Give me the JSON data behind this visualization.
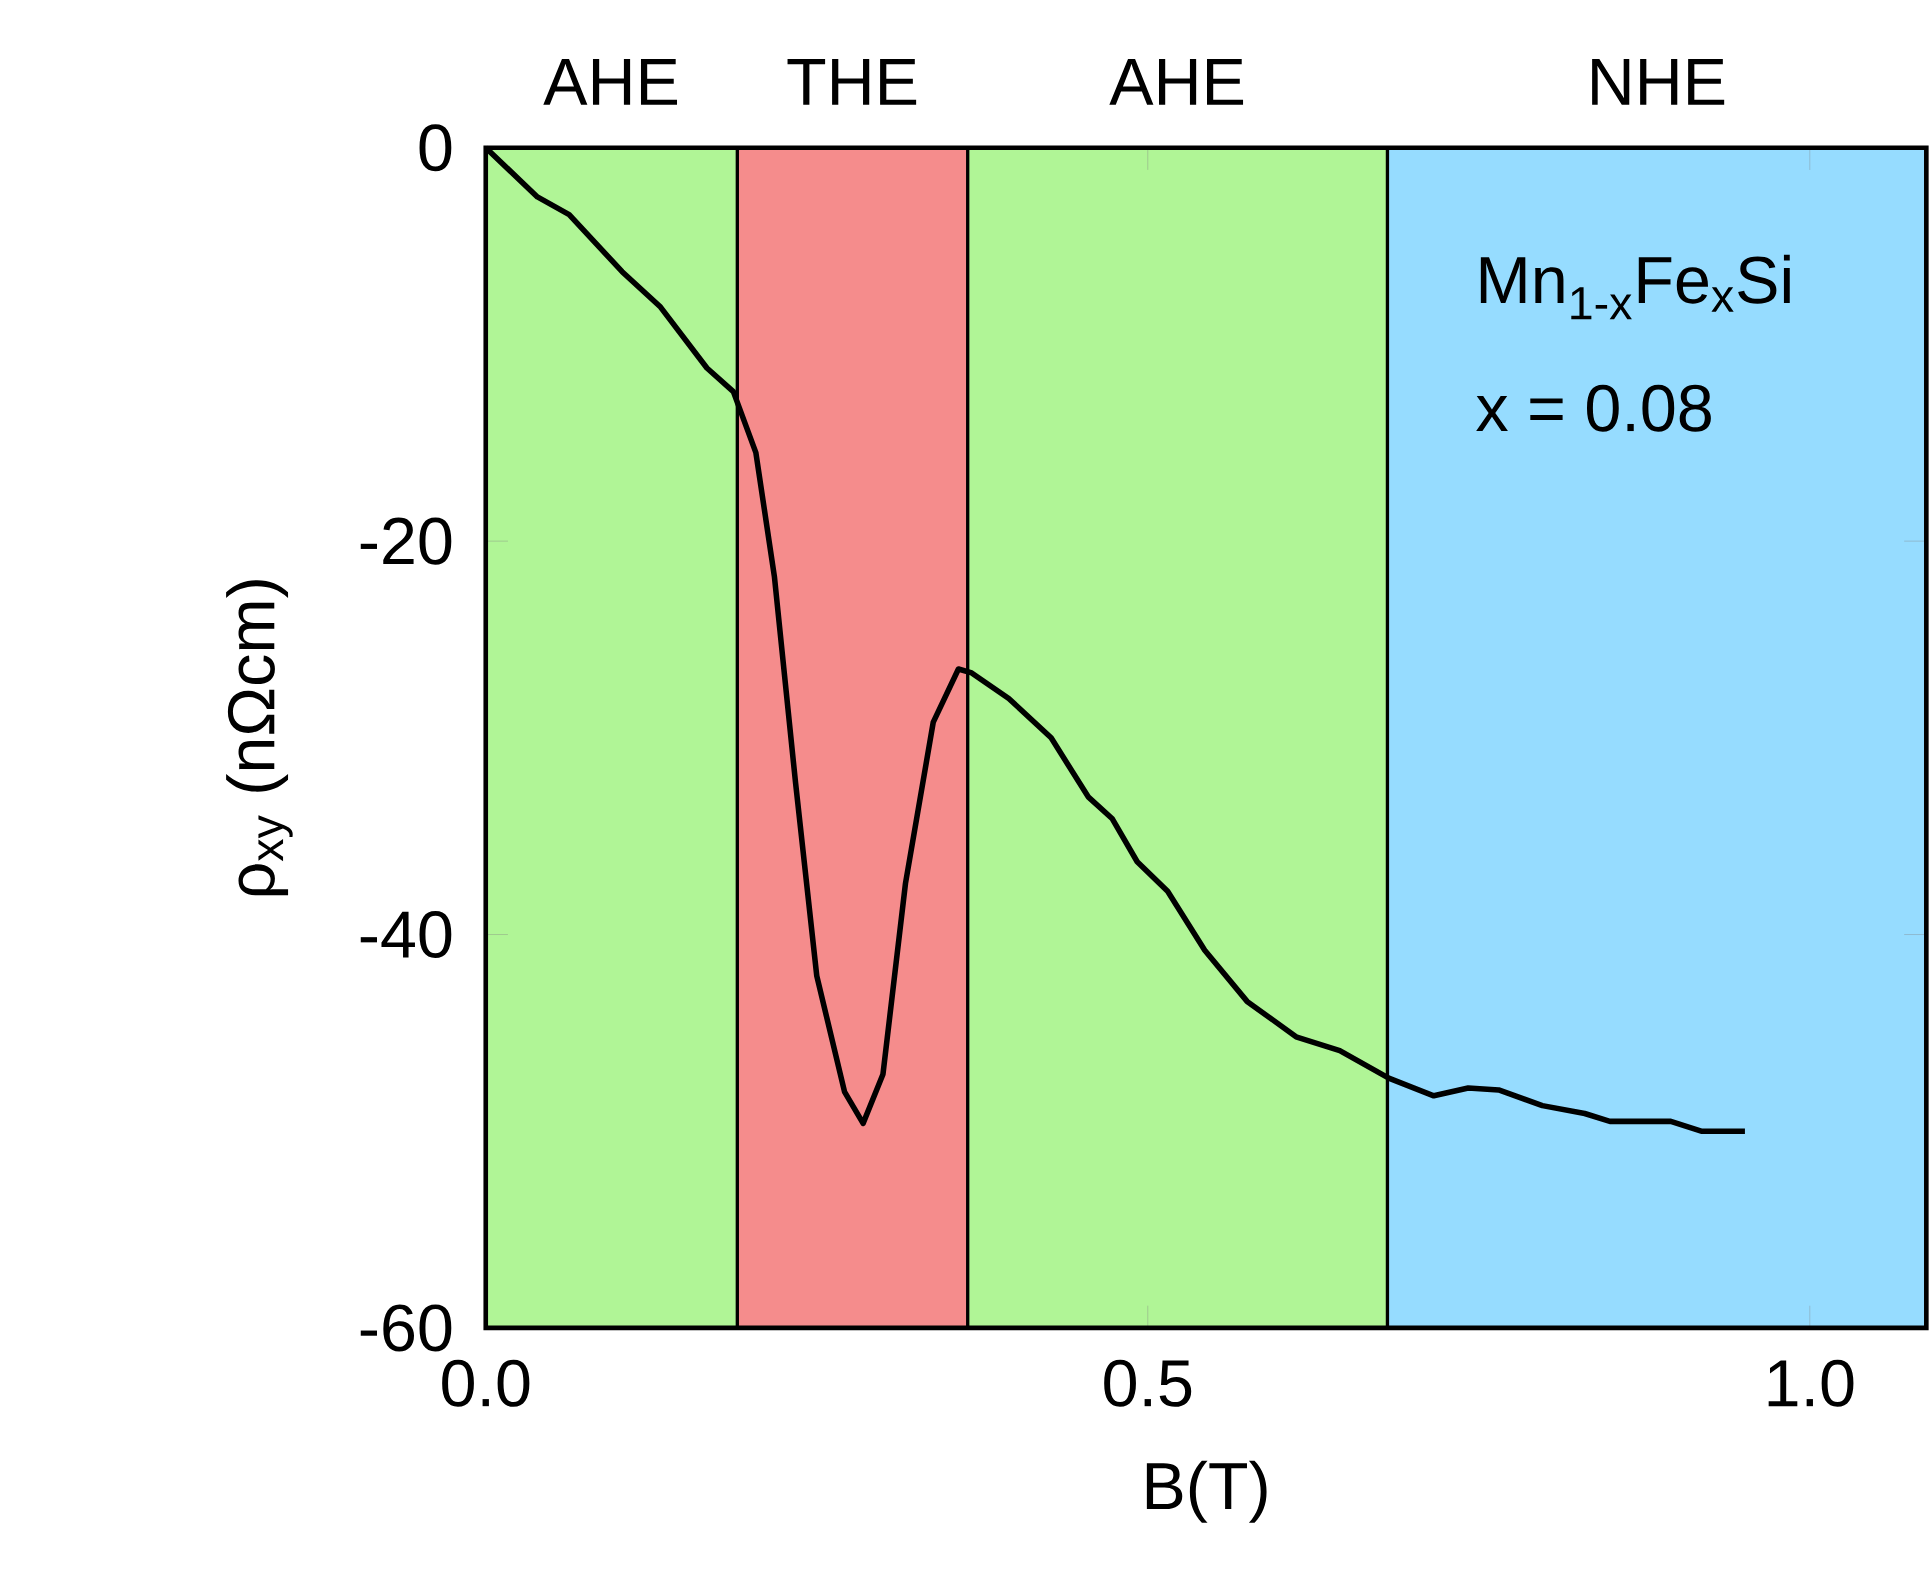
{
  "chart_data": {
    "type": "line",
    "xlabel": "B(T)",
    "ylabel": "ρ$_{xy}$ (nΩcm)",
    "annotations": [
      "Mn$_{1-x}$Fe$_{x}$Si",
      "x = 0.08"
    ],
    "xlim": [
      0,
      1.088
    ],
    "ylim": [
      -60,
      0
    ],
    "xticks": [
      {
        "value": 0,
        "label": "0.0"
      },
      {
        "value": 0.5,
        "label": "0.5"
      },
      {
        "value": 1.0,
        "label": "1.0"
      }
    ],
    "yticks": [
      0,
      -20,
      -40,
      -60
    ],
    "bands": [
      {
        "axis": "x",
        "from": 0,
        "to": 0.19,
        "label": "AHE",
        "color": "#b0f596"
      },
      {
        "axis": "x",
        "from": 0.19,
        "to": 0.364,
        "label": "THE",
        "color": "#f58c8c"
      },
      {
        "axis": "x",
        "from": 0.364,
        "to": 0.681,
        "label": "AHE",
        "color": "#b0f596"
      },
      {
        "axis": "x",
        "from": 0.681,
        "to": 1.088,
        "label": "NHE",
        "color": "#96dcff"
      }
    ],
    "ref_lines": [
      {
        "axis": "x",
        "value": 0.19,
        "color": "#000000"
      },
      {
        "axis": "x",
        "value": 0.364,
        "color": "#000000"
      },
      {
        "axis": "x",
        "value": 0.681,
        "color": "#000000"
      }
    ],
    "series": [
      {
        "color": "#000000",
        "x": [
          0,
          0.039,
          0.063,
          0.103,
          0.132,
          0.167,
          0.187,
          0.204,
          0.218,
          0.234,
          0.25,
          0.271,
          0.285,
          0.3,
          0.317,
          0.338,
          0.357,
          0.367,
          0.395,
          0.427,
          0.455,
          0.473,
          0.492,
          0.515,
          0.543,
          0.575,
          0.612,
          0.645,
          0.682,
          0.716,
          0.742,
          0.765,
          0.798,
          0.83,
          0.849,
          0.895,
          0.918,
          0.951
        ],
        "values": [
          0,
          -2.5,
          -3.4,
          -6.3,
          -8.1,
          -11.2,
          -12.4,
          -15.5,
          -21.8,
          -32.3,
          -42.1,
          -48.0,
          -49.6,
          -47.1,
          -37.4,
          -29.2,
          -26.5,
          -26.7,
          -28.0,
          -30.0,
          -33.0,
          -34.1,
          -36.3,
          -37.8,
          -40.8,
          -43.4,
          -45.2,
          -45.9,
          -47.3,
          -48.2,
          -47.8,
          -47.9,
          -48.7,
          -49.1,
          -49.5,
          -49.5,
          -50.0,
          -50.0
        ]
      }
    ]
  }
}
